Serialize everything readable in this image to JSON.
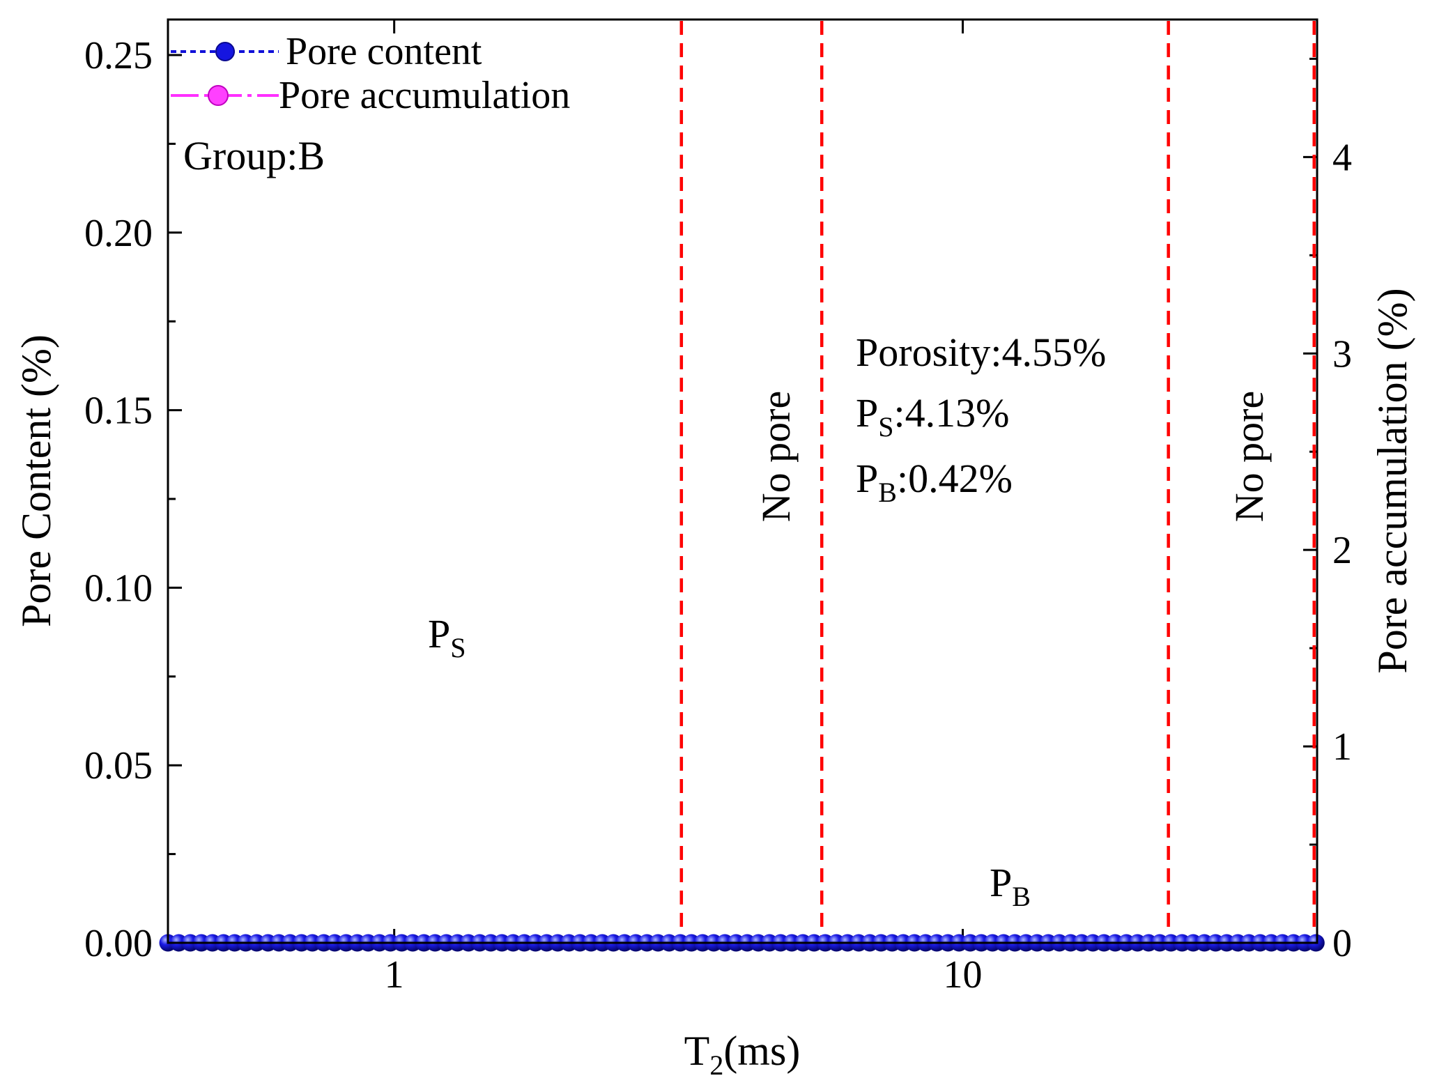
{
  "chart_data": {
    "type": "scatter",
    "xscale": "log",
    "xlim": [
      0.4,
      42
    ],
    "ylim_left": [
      0,
      0.26
    ],
    "ylim_right": [
      0,
      4.7
    ],
    "xlabel": {
      "main": "T",
      "sub": "2",
      "rest": "(ms)"
    },
    "ylabel_left": "Pore Content (%)",
    "ylabel_right": "Pore accumulation (%)",
    "x_ticks": [
      1,
      10
    ],
    "x_tick_labels": [
      "1",
      "10"
    ],
    "y_left_ticks": [
      0,
      0.05,
      0.1,
      0.15,
      0.2,
      0.25
    ],
    "y_left_tick_labels": [
      "0.00",
      "0.05",
      "0.10",
      "0.15",
      "0.20",
      "0.25"
    ],
    "y_right_ticks": [
      0,
      1,
      2,
      3,
      4
    ],
    "y_right_tick_labels": [
      "0",
      "1",
      "2",
      "3",
      "4"
    ],
    "legend_position": "top-left",
    "series": [
      {
        "name": "Pore content",
        "axis": "left",
        "color": "#1010d8",
        "line": "dotted",
        "x": [
          0.4,
          0.418,
          0.438,
          0.458,
          0.479,
          0.501,
          0.524,
          0.548,
          0.573,
          0.6,
          0.627,
          0.656,
          0.687,
          0.718,
          0.752,
          0.786,
          0.823,
          0.861,
          0.9,
          0.942,
          0.985,
          1.031,
          1.078,
          1.128,
          1.18,
          1.235,
          1.292,
          1.351,
          1.414,
          1.479,
          1.547,
          1.619,
          1.694,
          1.772,
          1.854,
          1.939,
          2.029,
          2.122,
          2.22,
          2.323,
          2.43,
          2.542,
          2.66,
          2.783,
          2.911,
          3.045,
          3.186,
          3.333,
          3.487,
          3.648,
          3.817,
          3.993,
          4.177,
          4.37,
          4.572,
          4.783,
          5.004,
          5.235,
          5.477,
          5.73,
          5.995,
          6.271,
          6.561,
          6.864,
          7.181,
          7.513,
          7.86,
          8.223,
          8.603,
          9.0,
          9.416,
          9.851,
          10.31,
          10.78,
          11.28,
          11.8,
          12.35,
          12.92,
          13.51,
          14.14,
          14.79,
          15.48,
          16.19,
          16.94,
          17.72,
          18.54,
          19.4,
          20.29,
          21.23,
          22.21,
          23.24,
          24.31,
          25.43,
          26.61,
          27.84,
          29.12,
          30.47,
          31.87,
          33.35,
          34.89,
          36.5,
          38.18,
          39.95,
          41.8
        ],
        "y": [
          0.0,
          0.0,
          0.0,
          0.0,
          0.0,
          0.0,
          0.0,
          0.0,
          0.0,
          0.0,
          0.0,
          0.0,
          0.0,
          0.0,
          0.0,
          0.0,
          0.0,
          0.0,
          0.0,
          0.0,
          0.0,
          0.0,
          0.0,
          0.0,
          0.0,
          0.0,
          0.0,
          0.0,
          0.0,
          0.0,
          0.0,
          0.0,
          0.0,
          0.0,
          0.0,
          0.0,
          0.0,
          0.0,
          0.0,
          0.0,
          0.0,
          0.0,
          0.0,
          0.0,
          0.0,
          0.0,
          0.0,
          0.0,
          0.0,
          0.0,
          0.0,
          0.0,
          0.0,
          0.0,
          0.0,
          0.0,
          0.0,
          0.0,
          0.0,
          0.0,
          0.0,
          0.0,
          0.0,
          0.0,
          0.0,
          0.0,
          0.0,
          0.0,
          0.0,
          0.0,
          0.0,
          0.0,
          0.0,
          0.0,
          0.0,
          0.0,
          0.0,
          0.0,
          0.0,
          0.0,
          0.0,
          0.0,
          0.0,
          0.0,
          0.0,
          0.0,
          0.0,
          0.0,
          0.0,
          0.0,
          0.0,
          0.0,
          0.0,
          0.0,
          0.0,
          0.0,
          0.0,
          0.0,
          0.0,
          0.0,
          0.0,
          0.0,
          0.0,
          0.0
        ]
      },
      {
        "name": "Pore accumulation",
        "axis": "right",
        "color": "#ff30ff",
        "line": "dashdot",
        "x": [],
        "y": []
      }
    ],
    "annotations": [
      {
        "id": "group",
        "text": "Group:B"
      },
      {
        "id": "porosity",
        "text": "Porosity:4.55%"
      },
      {
        "id": "ps-value",
        "main": "P",
        "sub": "S",
        "rest": ":4.13%"
      },
      {
        "id": "pb-value",
        "main": "P",
        "sub": "B",
        "rest": ":0.42%"
      },
      {
        "id": "ps-label",
        "main": "P",
        "sub": "S"
      },
      {
        "id": "pb-label",
        "main": "P",
        "sub": "B"
      },
      {
        "id": "no-pore-1",
        "text": "No pore"
      },
      {
        "id": "no-pore-2",
        "text": "No pore"
      }
    ],
    "reference_lines": {
      "color": "#ff0000",
      "style": "dashed",
      "x": [
        3.2,
        5.65,
        23.0,
        41.5
      ]
    }
  }
}
